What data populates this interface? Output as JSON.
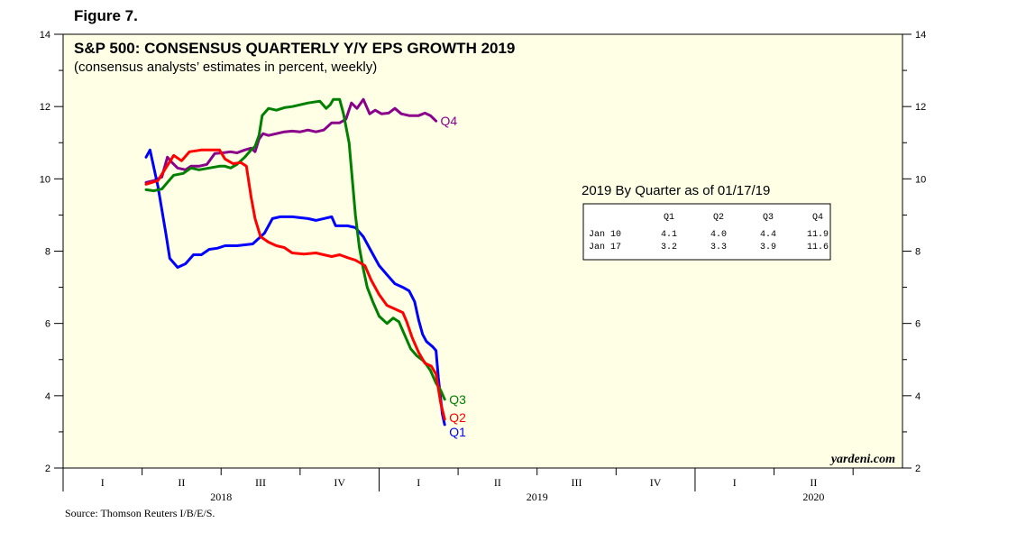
{
  "figure_label": "Figure 7.",
  "source": "Source: Thomson Reuters I/B/E/S.",
  "watermark": "yardeni.com",
  "colors": {
    "plot_bg": "#ffffe6",
    "Q1": "#0000ff",
    "Q2": "#ff0000",
    "Q3": "#008000",
    "Q4": "#8b008b"
  },
  "chart_data": {
    "type": "line",
    "title": "S&P 500: CONSENSUS QUARTERLY Y/Y EPS GROWTH 2019",
    "subtitle": "(consensus analysts’ estimates in percent, weekly)",
    "ylim": [
      2,
      14
    ],
    "yticks": [
      2,
      4,
      6,
      8,
      10,
      12,
      14
    ],
    "x_unit": "quarters since start of 2018",
    "xlim": [
      0,
      10.5
    ],
    "quarter_labels": [
      "I",
      "II",
      "III",
      "IV",
      "I",
      "II",
      "III",
      "IV",
      "I",
      "II"
    ],
    "year_labels": [
      {
        "label": "2018",
        "at": 2
      },
      {
        "label": "2019",
        "at": 6
      },
      {
        "label": "2020",
        "at": 9.5
      }
    ],
    "series": [
      {
        "name": "Q1",
        "end_label": "Q1",
        "points": [
          [
            1.05,
            10.6
          ],
          [
            1.1,
            10.8
          ],
          [
            1.2,
            9.8
          ],
          [
            1.3,
            8.5
          ],
          [
            1.35,
            7.8
          ],
          [
            1.45,
            7.55
          ],
          [
            1.55,
            7.65
          ],
          [
            1.65,
            7.9
          ],
          [
            1.75,
            7.9
          ],
          [
            1.85,
            8.05
          ],
          [
            1.95,
            8.08
          ],
          [
            2.05,
            8.15
          ],
          [
            2.2,
            8.15
          ],
          [
            2.4,
            8.2
          ],
          [
            2.55,
            8.5
          ],
          [
            2.65,
            8.9
          ],
          [
            2.75,
            8.95
          ],
          [
            2.9,
            8.95
          ],
          [
            3.1,
            8.9
          ],
          [
            3.2,
            8.85
          ],
          [
            3.3,
            8.9
          ],
          [
            3.4,
            8.95
          ],
          [
            3.45,
            8.7
          ],
          [
            3.6,
            8.7
          ],
          [
            3.7,
            8.65
          ],
          [
            3.8,
            8.4
          ],
          [
            3.9,
            8.0
          ],
          [
            4.0,
            7.6
          ],
          [
            4.1,
            7.35
          ],
          [
            4.2,
            7.1
          ],
          [
            4.3,
            7.0
          ],
          [
            4.38,
            6.9
          ],
          [
            4.45,
            6.6
          ],
          [
            4.5,
            6.1
          ],
          [
            4.55,
            5.7
          ],
          [
            4.6,
            5.5
          ],
          [
            4.68,
            5.35
          ],
          [
            4.72,
            5.25
          ],
          [
            4.75,
            4.5
          ],
          [
            4.8,
            3.5
          ],
          [
            4.83,
            3.2
          ]
        ]
      },
      {
        "name": "Q2",
        "end_label": "Q2",
        "points": [
          [
            1.05,
            9.85
          ],
          [
            1.2,
            9.95
          ],
          [
            1.3,
            10.3
          ],
          [
            1.4,
            10.65
          ],
          [
            1.5,
            10.5
          ],
          [
            1.6,
            10.75
          ],
          [
            1.75,
            10.8
          ],
          [
            1.9,
            10.8
          ],
          [
            1.98,
            10.8
          ],
          [
            2.05,
            10.55
          ],
          [
            2.15,
            10.42
          ],
          [
            2.25,
            10.45
          ],
          [
            2.32,
            10.35
          ],
          [
            2.38,
            9.5
          ],
          [
            2.43,
            8.9
          ],
          [
            2.5,
            8.4
          ],
          [
            2.6,
            8.25
          ],
          [
            2.7,
            8.15
          ],
          [
            2.8,
            8.1
          ],
          [
            2.9,
            7.95
          ],
          [
            3.05,
            7.92
          ],
          [
            3.2,
            7.95
          ],
          [
            3.3,
            7.9
          ],
          [
            3.4,
            7.85
          ],
          [
            3.5,
            7.9
          ],
          [
            3.6,
            7.82
          ],
          [
            3.7,
            7.75
          ],
          [
            3.82,
            7.6
          ],
          [
            3.9,
            7.2
          ],
          [
            4.0,
            6.8
          ],
          [
            4.1,
            6.5
          ],
          [
            4.2,
            6.4
          ],
          [
            4.3,
            6.3
          ],
          [
            4.35,
            6.05
          ],
          [
            4.42,
            5.6
          ],
          [
            4.5,
            5.2
          ],
          [
            4.58,
            4.9
          ],
          [
            4.66,
            4.82
          ],
          [
            4.72,
            4.6
          ],
          [
            4.78,
            3.8
          ],
          [
            4.83,
            3.35
          ]
        ]
      },
      {
        "name": "Q3",
        "end_label": "Q3",
        "points": [
          [
            1.05,
            9.7
          ],
          [
            1.15,
            9.67
          ],
          [
            1.25,
            9.72
          ],
          [
            1.32,
            9.9
          ],
          [
            1.4,
            10.1
          ],
          [
            1.52,
            10.15
          ],
          [
            1.62,
            10.3
          ],
          [
            1.72,
            10.25
          ],
          [
            1.85,
            10.3
          ],
          [
            1.98,
            10.35
          ],
          [
            2.05,
            10.35
          ],
          [
            2.12,
            10.3
          ],
          [
            2.2,
            10.4
          ],
          [
            2.3,
            10.6
          ],
          [
            2.38,
            10.8
          ],
          [
            2.43,
            10.9
          ],
          [
            2.48,
            11.2
          ],
          [
            2.52,
            11.75
          ],
          [
            2.6,
            11.95
          ],
          [
            2.7,
            11.9
          ],
          [
            2.8,
            11.97
          ],
          [
            2.9,
            12.0
          ],
          [
            3.0,
            12.05
          ],
          [
            3.1,
            12.1
          ],
          [
            3.25,
            12.15
          ],
          [
            3.33,
            11.95
          ],
          [
            3.38,
            12.05
          ],
          [
            3.42,
            12.2
          ],
          [
            3.5,
            12.2
          ],
          [
            3.55,
            11.8
          ],
          [
            3.62,
            11.0
          ],
          [
            3.66,
            10.0
          ],
          [
            3.7,
            9.0
          ],
          [
            3.75,
            8.1
          ],
          [
            3.8,
            7.5
          ],
          [
            3.85,
            7.0
          ],
          [
            3.92,
            6.6
          ],
          [
            4.0,
            6.2
          ],
          [
            4.1,
            6.0
          ],
          [
            4.18,
            6.15
          ],
          [
            4.25,
            6.05
          ],
          [
            4.32,
            5.7
          ],
          [
            4.4,
            5.3
          ],
          [
            4.48,
            5.1
          ],
          [
            4.57,
            4.95
          ],
          [
            4.65,
            4.7
          ],
          [
            4.72,
            4.35
          ],
          [
            4.78,
            4.15
          ],
          [
            4.83,
            3.9
          ]
        ]
      },
      {
        "name": "Q4",
        "end_label": "Q4",
        "points": [
          [
            1.05,
            9.9
          ],
          [
            1.15,
            9.95
          ],
          [
            1.25,
            10.05
          ],
          [
            1.32,
            10.6
          ],
          [
            1.38,
            10.45
          ],
          [
            1.45,
            10.3
          ],
          [
            1.55,
            10.25
          ],
          [
            1.62,
            10.35
          ],
          [
            1.72,
            10.35
          ],
          [
            1.82,
            10.4
          ],
          [
            1.92,
            10.7
          ],
          [
            2.02,
            10.72
          ],
          [
            2.12,
            10.75
          ],
          [
            2.2,
            10.72
          ],
          [
            2.3,
            10.8
          ],
          [
            2.38,
            10.85
          ],
          [
            2.43,
            10.75
          ],
          [
            2.48,
            11.1
          ],
          [
            2.53,
            11.25
          ],
          [
            2.6,
            11.2
          ],
          [
            2.7,
            11.25
          ],
          [
            2.8,
            11.3
          ],
          [
            2.9,
            11.32
          ],
          [
            3.0,
            11.3
          ],
          [
            3.1,
            11.35
          ],
          [
            3.2,
            11.3
          ],
          [
            3.3,
            11.35
          ],
          [
            3.4,
            11.55
          ],
          [
            3.5,
            11.55
          ],
          [
            3.58,
            11.65
          ],
          [
            3.65,
            12.1
          ],
          [
            3.72,
            11.95
          ],
          [
            3.8,
            12.2
          ],
          [
            3.88,
            11.8
          ],
          [
            3.95,
            11.9
          ],
          [
            4.03,
            11.8
          ],
          [
            4.12,
            11.82
          ],
          [
            4.2,
            11.95
          ],
          [
            4.28,
            11.8
          ],
          [
            4.38,
            11.75
          ],
          [
            4.5,
            11.75
          ],
          [
            4.58,
            11.82
          ],
          [
            4.65,
            11.75
          ],
          [
            4.72,
            11.6
          ]
        ]
      }
    ],
    "table": {
      "title": "2019 By Quarter as of 01/17/19",
      "columns": [
        "Q1",
        "Q2",
        "Q3",
        "Q4"
      ],
      "rows": [
        {
          "label": "Jan 10",
          "values": [
            "4.1",
            "4.0",
            "4.4",
            "11.9"
          ]
        },
        {
          "label": "Jan 17",
          "values": [
            "3.2",
            "3.3",
            "3.9",
            "11.6"
          ]
        }
      ]
    }
  }
}
